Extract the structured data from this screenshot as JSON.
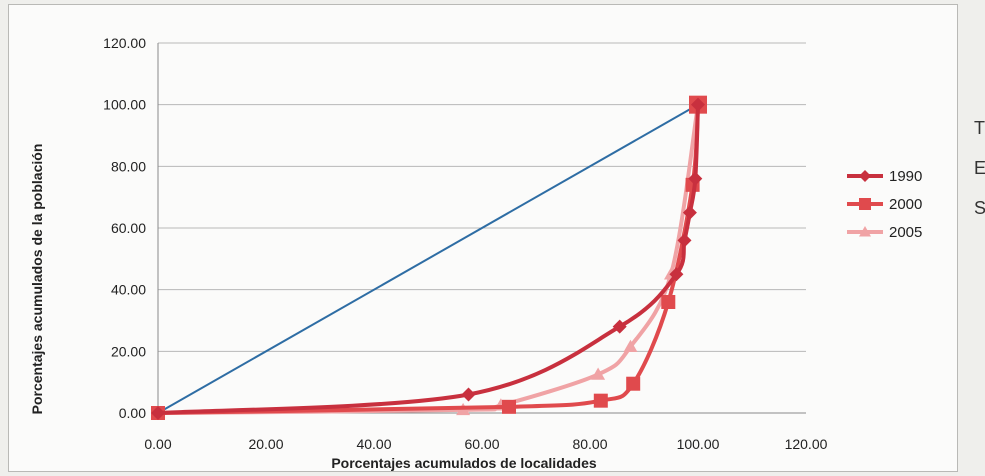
{
  "chart_data": {
    "type": "line",
    "title": "",
    "xlabel": "Porcentajes acumulados de localidades",
    "ylabel": "Porcentajes acumulados de la población",
    "xlim": [
      0,
      120
    ],
    "ylim": [
      0,
      120
    ],
    "x_ticks": [
      "0.00",
      "20.00",
      "40.00",
      "60.00",
      "80.00",
      "100.00",
      "120.00"
    ],
    "y_ticks": [
      "0.00",
      "20.00",
      "40.00",
      "60.00",
      "80.00",
      "100.00",
      "120.00"
    ],
    "grid": "horizontal",
    "legend_position": "right",
    "equality_line": {
      "color": "#2e6da4",
      "points": [
        [
          0,
          0
        ],
        [
          100,
          100
        ]
      ]
    },
    "series": [
      {
        "name": "1990",
        "color": "#c8303e",
        "marker": "diamond",
        "points": [
          [
            0,
            0
          ],
          [
            57.5,
            6
          ],
          [
            85.5,
            28
          ],
          [
            96,
            45
          ],
          [
            97.5,
            56
          ],
          [
            98.5,
            65
          ],
          [
            99.5,
            76
          ],
          [
            100,
            100
          ]
        ]
      },
      {
        "name": "2000",
        "color": "#e04a4d",
        "marker": "square",
        "points": [
          [
            0,
            0
          ],
          [
            65,
            2
          ],
          [
            82,
            4
          ],
          [
            88,
            9.5
          ],
          [
            94.5,
            36
          ],
          [
            99,
            74
          ],
          [
            100,
            100
          ]
        ]
      },
      {
        "name": "2005",
        "color": "#f0a3a5",
        "marker": "triangle",
        "points": [
          [
            0,
            0
          ],
          [
            56.5,
            1
          ],
          [
            63.5,
            2.5
          ],
          [
            81.5,
            12.5
          ],
          [
            87.5,
            21.5
          ],
          [
            95,
            45
          ],
          [
            100,
            100
          ]
        ]
      }
    ]
  },
  "side_text": [
    "T",
    "E",
    "S"
  ]
}
